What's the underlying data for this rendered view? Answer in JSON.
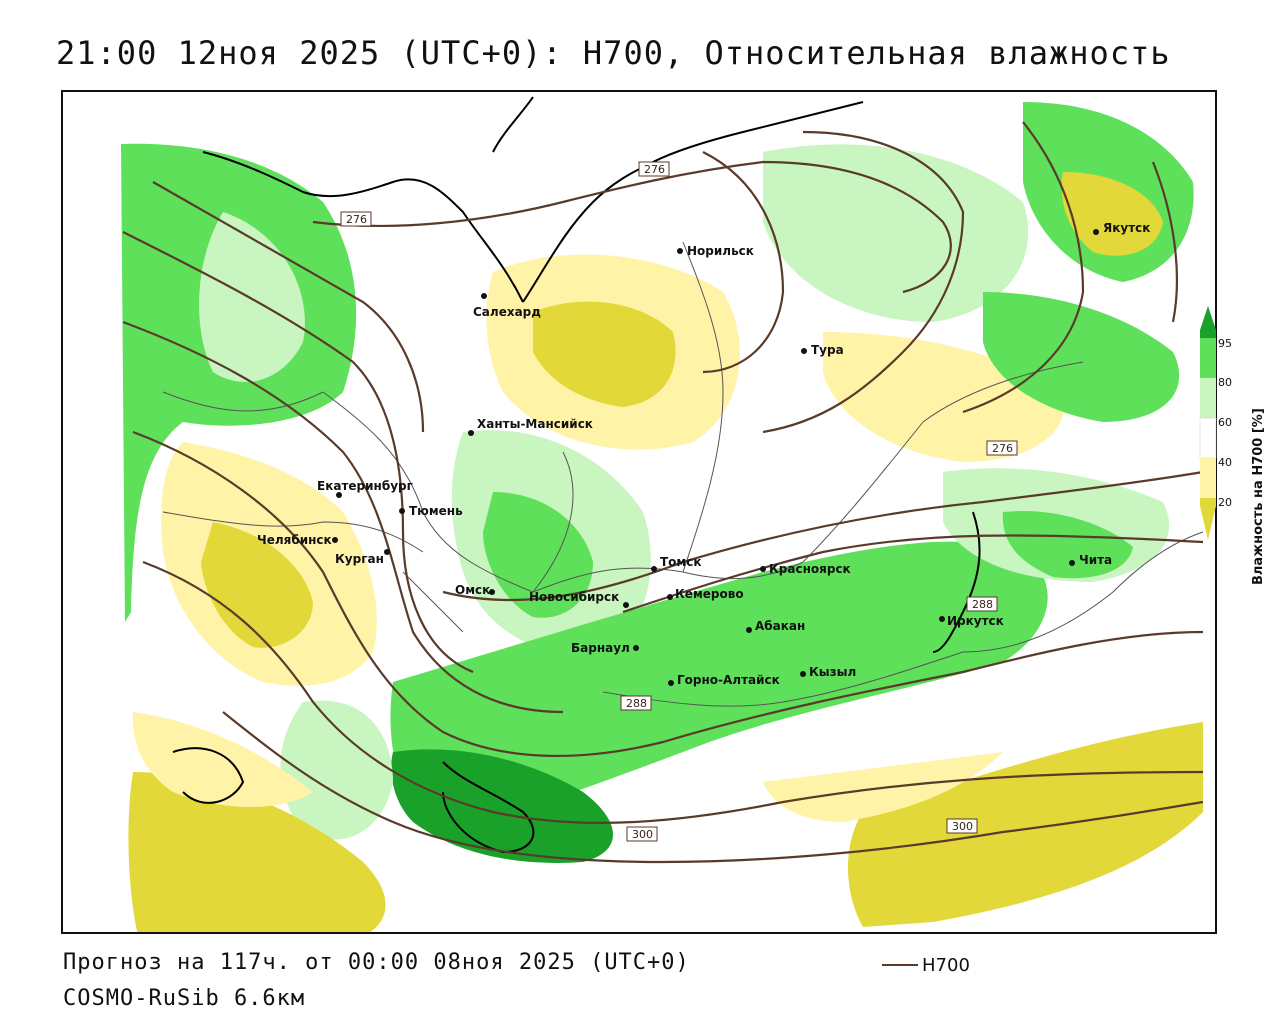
{
  "title": "21:00 12ноя 2025 (UTC+0): H700, Относительная влажность",
  "colors": {
    "rh_20_40": "#fff3a8",
    "rh_below_20": "#e3d83a",
    "rh_60_80": "#c8f5c0",
    "rh_80_95": "#5ee05a",
    "rh_above_95": "#1aa12a",
    "contour": "#5a3a2a",
    "coast": "#000000",
    "border": "#555555"
  },
  "legend": {
    "title": "Влажность на H700 [%]",
    "ticks": [
      "95",
      "80",
      "60",
      "40",
      "20"
    ]
  },
  "contour_labels": [
    {
      "id": "c276a",
      "text": "276"
    },
    {
      "id": "c276b",
      "text": "276"
    },
    {
      "id": "c276c",
      "text": "276"
    },
    {
      "id": "c288a",
      "text": "288"
    },
    {
      "id": "c288b",
      "text": "288"
    },
    {
      "id": "c300a",
      "text": "300"
    },
    {
      "id": "c300b",
      "text": "300"
    }
  ],
  "cities": [
    {
      "id": "salekhard",
      "name": "Салехард"
    },
    {
      "id": "norilsk",
      "name": "Норильск"
    },
    {
      "id": "yakutsk",
      "name": "Якутск"
    },
    {
      "id": "tura",
      "name": "Тура"
    },
    {
      "id": "khanty",
      "name": "Ханты-Мансийск"
    },
    {
      "id": "ekaterinburg",
      "name": "Екатеринбург"
    },
    {
      "id": "tyumen",
      "name": "Тюмень"
    },
    {
      "id": "chelyabinsk",
      "name": "Челябинск"
    },
    {
      "id": "kurgan",
      "name": "Курган"
    },
    {
      "id": "omsk",
      "name": "Омск"
    },
    {
      "id": "novosibirsk",
      "name": "Новосибирск"
    },
    {
      "id": "tomsk",
      "name": "Томск"
    },
    {
      "id": "kemerovo",
      "name": "Кемерово"
    },
    {
      "id": "krasnoyarsk",
      "name": "Красноярск"
    },
    {
      "id": "barnaul",
      "name": "Барнаул"
    },
    {
      "id": "abakan",
      "name": "Абакан"
    },
    {
      "id": "gorno",
      "name": "Горно-Алтайск"
    },
    {
      "id": "kyzyl",
      "name": "Кызыл"
    },
    {
      "id": "irkutsk",
      "name": "Иркутск"
    },
    {
      "id": "chita",
      "name": "Чита"
    }
  ],
  "footer": {
    "forecast": "Прогноз на 117ч. от 00:00 08ноя 2025 (UTC+0)",
    "model": "COSMO-RuSib 6.6км",
    "key_label": "H700"
  }
}
